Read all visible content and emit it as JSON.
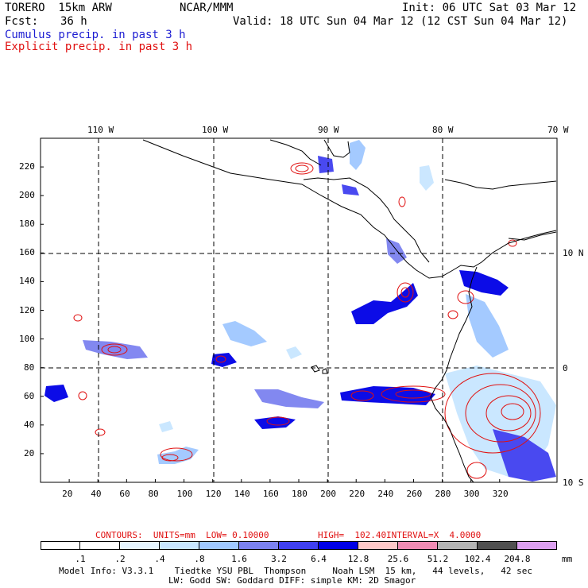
{
  "header": {
    "model": "TORERO  15km ARW",
    "center": "NCAR/MMM",
    "init": "Init: 06 UTC Sat 03 Mar 12",
    "fcst_label": "Fcst:",
    "fcst_value": "36 h",
    "valid": "Valid: 18 UTC Sun 04 Mar 12 (12 CST Sun 04 Mar 12)",
    "field1": "Cumulus precip. in past 3 h",
    "field2": "Explicit precip. in past 3 h"
  },
  "axes": {
    "lon_labels": [
      "110 W",
      "100 W",
      "90 W",
      "80 W",
      "70 W"
    ],
    "lat_labels": [
      "10 N",
      "0",
      "10 S"
    ],
    "x_ticks": [
      "20",
      "40",
      "60",
      "80",
      "100",
      "120",
      "140",
      "160",
      "180",
      "200",
      "220",
      "240",
      "260",
      "280",
      "300",
      "320"
    ],
    "y_ticks": [
      "20",
      "40",
      "60",
      "80",
      "100",
      "120",
      "140",
      "160",
      "180",
      "200",
      "220"
    ]
  },
  "contour_info": {
    "units": "CONTOURS:  UNITS=mm  LOW= 0.10000",
    "high": "HIGH=  102.40",
    "interval": "INTERVAL=X  4.0000"
  },
  "legend": {
    "labels": [
      ".1",
      ".2",
      ".4",
      ".8",
      "1.6",
      "3.2",
      "6.4",
      "12.8",
      "25.6",
      "51.2",
      "102.4",
      "204.8"
    ],
    "unit": "mm",
    "colors": [
      "#ffffff",
      "#ffffff",
      "#e6f5ff",
      "#c8e6ff",
      "#a0c8ff",
      "#7c82f0",
      "#4040f0",
      "#0000e6",
      "#ffc8c8",
      "#f08cb4",
      "#b4b4b4",
      "#505050",
      "#dca0f0"
    ]
  },
  "footer": {
    "line1": "Model Info: V3.3.1    Tiedtke YSU PBL  Thompson     Noah LSM  15 km,   44 levels,   42 sec",
    "line2": "LW: Godd SW: Goddard DIFF: simple KM: 2D Smagor"
  }
}
